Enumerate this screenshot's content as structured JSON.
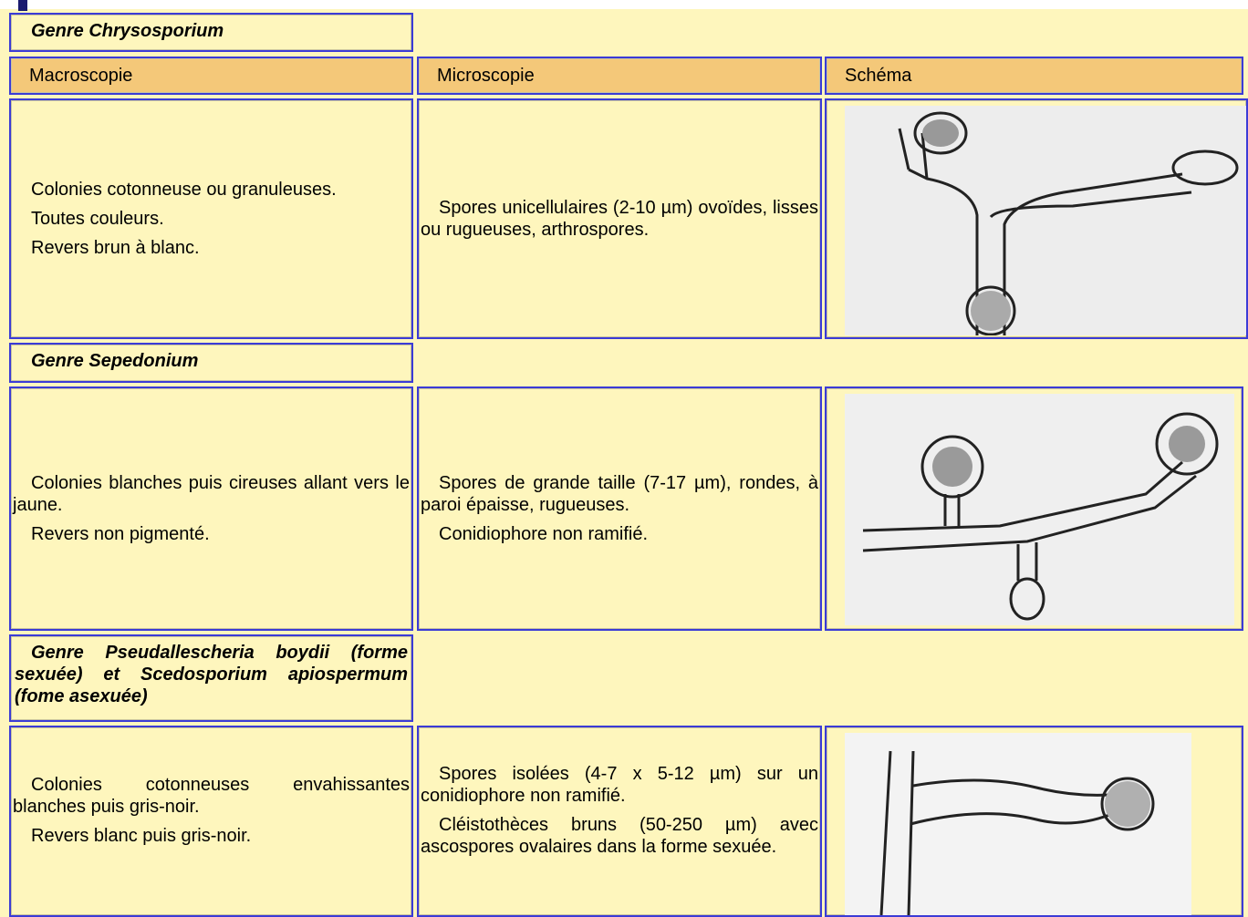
{
  "header_labels": [
    "Macroscopie",
    "Microscopie",
    "Schéma"
  ],
  "sections": [
    {
      "title": "Genre Chrysosporium",
      "macroscopie": [
        "Colonies cotonneuse ou granuleuses.",
        "Toutes couleurs.",
        "Revers brun à blanc."
      ],
      "microscopie": [
        "Spores unicellulaires (2-10 µm) ovoïdes, lisses ou rugueuses, arthrospores."
      ]
    },
    {
      "title": "Genre Sepedonium",
      "macroscopie": [
        "Colonies blanches puis cireuses allant vers le jaune.",
        "Revers non pigmenté."
      ],
      "microscopie": [
        "Spores de grande taille (7-17 µm), rondes, à paroi épaisse, rugueuses.",
        "Conidiophore non ramifié."
      ]
    },
    {
      "title": "Genre Pseudallescheria boydii (forme sexuée) et Scedosporium apiospermum (fome asexuée)",
      "macroscopie": [
        "Colonies cotonneuses envahissantes blanches puis gris-noir.",
        "Revers blanc puis gris-noir."
      ],
      "microscopie": [
        "Spores isolées (4-7 x 5-12 µm) sur un conidiophore non ramifié.",
        "Cléistothèces bruns (50-250 µm) avec ascospores ovalaires dans la forme sexuée."
      ]
    }
  ]
}
